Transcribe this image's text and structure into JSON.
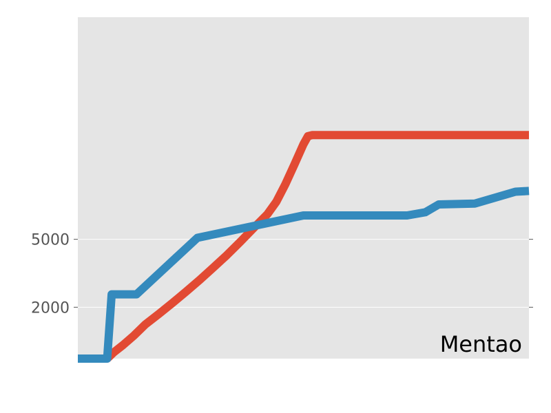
{
  "chart_data": {
    "type": "line",
    "title": "",
    "xlabel": "",
    "ylabel": "",
    "annotation": "Mentao",
    "yscale": "log",
    "ylim": [
      1000,
      100000
    ],
    "yticks": [
      2000,
      5000
    ],
    "ytick_labels": [
      "2000",
      "5000"
    ],
    "xlim": [
      0,
      100
    ],
    "grid": true,
    "legend": "none",
    "series": [
      {
        "color": "#E24A33",
        "x": [
          6.5,
          8,
          10,
          12.5,
          15,
          18,
          21,
          24,
          27,
          30,
          33,
          36,
          39,
          42,
          44,
          46,
          48,
          50,
          51,
          52,
          55,
          60,
          70,
          80,
          90,
          100
        ],
        "y": [
          1000,
          1090,
          1200,
          1370,
          1590,
          1830,
          2120,
          2470,
          2890,
          3410,
          4030,
          4830,
          5830,
          7000,
          8300,
          10500,
          13700,
          18000,
          20100,
          20400,
          20400,
          20400,
          20400,
          20400,
          20400,
          20400
        ]
      },
      {
        "color": "#348ABD",
        "x": [
          0,
          3,
          6.5,
          7.5,
          13,
          26.5,
          50,
          60,
          73,
          77,
          80,
          88,
          97,
          100
        ],
        "y": [
          1000,
          1000,
          1000,
          2380,
          2380,
          5100,
          6900,
          6900,
          6900,
          7200,
          8000,
          8100,
          9500,
          9600
        ]
      }
    ]
  }
}
